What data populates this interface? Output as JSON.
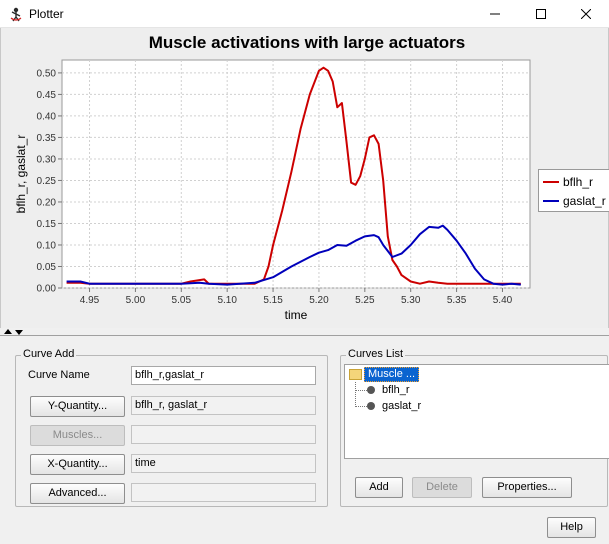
{
  "window": {
    "title": "Plotter"
  },
  "legend": [
    {
      "label": "bflh_r",
      "color": "#cc0000"
    },
    {
      "label": "gaslat_r",
      "color": "#0000bb"
    }
  ],
  "chart_data": {
    "type": "line",
    "title": "Muscle activations with large actuators",
    "xlabel": "time",
    "ylabel": "bflh_r, gaslat_r",
    "xlim": [
      4.92,
      5.43
    ],
    "ylim": [
      0.0,
      0.53
    ],
    "xticks": [
      "4.95",
      "5.00",
      "5.05",
      "5.10",
      "5.15",
      "5.20",
      "5.25",
      "5.30",
      "5.35",
      "5.40"
    ],
    "yticks": [
      "0.00",
      "0.05",
      "0.10",
      "0.15",
      "0.20",
      "0.25",
      "0.30",
      "0.35",
      "0.40",
      "0.45",
      "0.50"
    ],
    "grid": true,
    "legend_position": "right",
    "series": [
      {
        "name": "bflh_r",
        "color": "#cc0000",
        "x": [
          4.925,
          4.94,
          4.95,
          5.0,
          5.05,
          5.06,
          5.075,
          5.08,
          5.1,
          5.13,
          5.14,
          5.145,
          5.15,
          5.16,
          5.17,
          5.18,
          5.19,
          5.2,
          5.205,
          5.21,
          5.215,
          5.22,
          5.225,
          5.23,
          5.235,
          5.24,
          5.245,
          5.25,
          5.255,
          5.26,
          5.265,
          5.27,
          5.275,
          5.28,
          5.285,
          5.29,
          5.3,
          5.31,
          5.32,
          5.33,
          5.34,
          5.35,
          5.4,
          5.42
        ],
        "y": [
          0.012,
          0.012,
          0.01,
          0.01,
          0.01,
          0.015,
          0.02,
          0.01,
          0.01,
          0.01,
          0.02,
          0.05,
          0.1,
          0.18,
          0.27,
          0.37,
          0.45,
          0.505,
          0.512,
          0.505,
          0.48,
          0.42,
          0.43,
          0.34,
          0.245,
          0.24,
          0.26,
          0.3,
          0.35,
          0.355,
          0.335,
          0.25,
          0.12,
          0.065,
          0.05,
          0.03,
          0.015,
          0.01,
          0.015,
          0.012,
          0.01,
          0.01,
          0.01,
          0.01
        ]
      },
      {
        "name": "gaslat_r",
        "color": "#0000bb",
        "x": [
          4.925,
          4.94,
          4.95,
          5.0,
          5.05,
          5.07,
          5.08,
          5.1,
          5.13,
          5.15,
          5.17,
          5.19,
          5.2,
          5.21,
          5.22,
          5.23,
          5.24,
          5.25,
          5.26,
          5.265,
          5.27,
          5.28,
          5.29,
          5.3,
          5.31,
          5.32,
          5.33,
          5.335,
          5.34,
          5.35,
          5.36,
          5.37,
          5.38,
          5.39,
          5.4,
          5.41,
          5.42
        ],
        "y": [
          0.015,
          0.015,
          0.01,
          0.01,
          0.01,
          0.012,
          0.01,
          0.008,
          0.012,
          0.025,
          0.05,
          0.072,
          0.082,
          0.088,
          0.1,
          0.098,
          0.11,
          0.12,
          0.123,
          0.118,
          0.1,
          0.072,
          0.08,
          0.1,
          0.125,
          0.142,
          0.14,
          0.145,
          0.135,
          0.11,
          0.08,
          0.045,
          0.02,
          0.01,
          0.008,
          0.01,
          0.008
        ]
      }
    ]
  },
  "curve_add": {
    "group_label": "Curve Add",
    "curve_name_label": "Curve Name",
    "curve_name_value": "bflh_r,gaslat_r",
    "y_quantity_button": "Y-Quantity...",
    "y_quantity_value": "bflh_r, gaslat_r",
    "muscles_button": "Muscles...",
    "muscles_value": "",
    "x_quantity_button": "X-Quantity...",
    "x_quantity_value": "time",
    "advanced_button": "Advanced...",
    "advanced_value": ""
  },
  "curves_list": {
    "group_label": "Curves List",
    "root": "Muscle ...",
    "items": [
      "bflh_r",
      "gaslat_r"
    ],
    "add_button": "Add",
    "delete_button": "Delete",
    "properties_button": "Properties..."
  },
  "help_button": "Help"
}
